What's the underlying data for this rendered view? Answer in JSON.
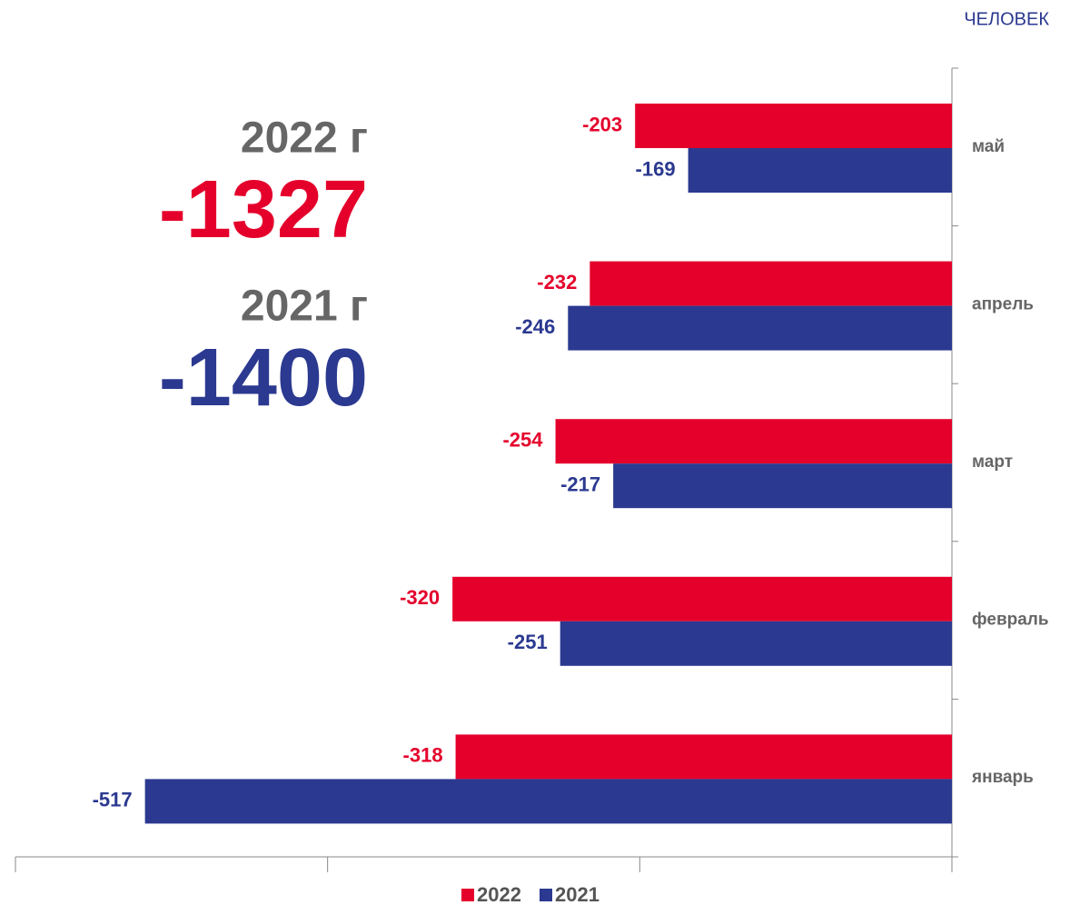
{
  "chart_data": {
    "type": "bar",
    "orientation": "horizontal",
    "unit_label": "ЧЕЛОВЕК",
    "totals": [
      {
        "label": "2022 г",
        "value": -1327,
        "color": "#e4002b"
      },
      {
        "label": "2021 г",
        "value": -1400,
        "color": "#2b3990"
      }
    ],
    "categories": [
      "май",
      "апрель",
      "март",
      "февраль",
      "январь"
    ],
    "series": [
      {
        "name": "2022",
        "color": "#e4002b",
        "values": [
          -203,
          -232,
          -254,
          -320,
          -318
        ]
      },
      {
        "name": "2021",
        "color": "#2b3990",
        "values": [
          -169,
          -246,
          -217,
          -251,
          -517
        ]
      }
    ],
    "xlim": [
      -600,
      0
    ],
    "xticks": [
      -600,
      -400,
      -200,
      0
    ]
  }
}
